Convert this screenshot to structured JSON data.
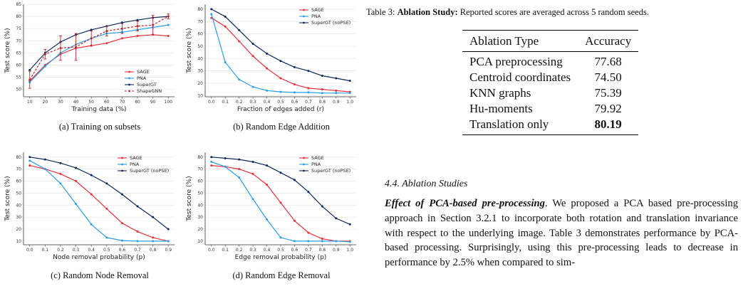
{
  "chart_data": [
    {
      "type": "line",
      "x": [
        10,
        20,
        30,
        40,
        50,
        60,
        70,
        80,
        90,
        100
      ],
      "xticks": [
        "10",
        "20",
        "30",
        "40",
        "50",
        "60",
        "70",
        "80",
        "90",
        "100"
      ],
      "yticks": [
        "50",
        "55",
        "60",
        "65",
        "70",
        "75",
        "80",
        "85"
      ],
      "ylim": [
        47,
        85
      ],
      "xlabel": "Training data (%)",
      "ylabel": "Test score (%)",
      "legend": "bottom-right",
      "grid": true,
      "series": [
        {
          "name": "SAGE",
          "color": "#e8303a",
          "values": [
            53.5,
            60,
            64.5,
            67,
            68,
            69,
            71,
            72,
            72.5,
            72
          ]
        },
        {
          "name": "PNA",
          "color": "#2a9ee8",
          "values": [
            53,
            59.5,
            65,
            68.5,
            71,
            73,
            73.5,
            74.5,
            75.5,
            76.5
          ]
        },
        {
          "name": "SuperGT",
          "color": "#0b2a5a",
          "values": [
            58,
            65,
            69.5,
            72.5,
            74.5,
            76,
            77.5,
            78.5,
            79.5,
            80
          ]
        },
        {
          "name": "ShapeGNN",
          "color": "#c0262d",
          "dashed": true,
          "errorbars": true,
          "values": [
            54,
            64.5,
            67,
            67.5,
            71,
            74,
            75,
            76,
            76.5,
            80
          ],
          "err": [
            3.5,
            2,
            5,
            5.5,
            3,
            2,
            2,
            2,
            4,
            1
          ]
        }
      ]
    },
    {
      "type": "line",
      "x": [
        0.0,
        0.1,
        0.2,
        0.3,
        0.4,
        0.5,
        0.6,
        0.7,
        0.8,
        0.9,
        1.0
      ],
      "xticks": [
        "0.0",
        "0.1",
        "0.2",
        "0.3",
        "0.4",
        "0.5",
        "0.6",
        "0.7",
        "0.8",
        "0.9",
        "1.0"
      ],
      "yticks": [
        "10",
        "20",
        "30",
        "40",
        "50",
        "60",
        "70",
        "80"
      ],
      "ylim": [
        9,
        84
      ],
      "xlabel": "Fraction of edges added (r)",
      "ylabel": "Test score (%)",
      "legend": "top-right",
      "grid": true,
      "series": [
        {
          "name": "SAGE",
          "color": "#e8303a",
          "values": [
            73,
            66,
            54,
            42,
            32,
            24,
            19,
            16,
            15,
            14,
            13
          ]
        },
        {
          "name": "PNA",
          "color": "#2a9ee8",
          "values": [
            76,
            37,
            23,
            17,
            14,
            13,
            12.5,
            12.5,
            12,
            12,
            12
          ]
        },
        {
          "name": "SuperGT (noPSE)",
          "color": "#0b2a5a",
          "values": [
            80,
            74,
            63,
            52,
            44,
            38,
            33,
            30,
            26,
            24,
            22
          ]
        }
      ]
    },
    {
      "type": "line",
      "x": [
        0.0,
        0.1,
        0.2,
        0.3,
        0.4,
        0.5,
        0.6,
        0.7,
        0.8,
        0.9
      ],
      "xticks": [
        "0.0",
        "0.1",
        "0.2",
        "0.3",
        "0.4",
        "0.5",
        "0.6",
        "0.7",
        "0.8",
        "0.9"
      ],
      "yticks": [
        "10",
        "20",
        "30",
        "40",
        "50",
        "60",
        "70",
        "80"
      ],
      "ylim": [
        7,
        84
      ],
      "xlabel": "Node removal probability (p)",
      "ylabel": "Test score (%)",
      "legend": "top-right",
      "grid": true,
      "series": [
        {
          "name": "SAGE",
          "color": "#e8303a",
          "values": [
            73,
            70,
            66,
            60,
            49,
            37,
            25,
            18,
            13,
            10
          ]
        },
        {
          "name": "PNA",
          "color": "#2a9ee8",
          "values": [
            77,
            70,
            58,
            41,
            24,
            13,
            10.5,
            10,
            10,
            10
          ]
        },
        {
          "name": "SuperGT (noPSE)",
          "color": "#0b2a5a",
          "values": [
            80,
            78,
            75,
            71,
            65,
            58,
            49,
            39,
            30,
            20
          ]
        }
      ]
    },
    {
      "type": "line",
      "x": [
        0.0,
        0.1,
        0.2,
        0.3,
        0.4,
        0.5,
        0.6,
        0.7,
        0.8,
        0.9,
        1.0
      ],
      "xticks": [
        "0.0",
        "0.1",
        "0.2",
        "0.3",
        "0.4",
        "0.5",
        "0.6",
        "0.7",
        "0.8",
        "0.9",
        "1.0"
      ],
      "yticks": [
        "10",
        "20",
        "30",
        "40",
        "50",
        "60",
        "70",
        "80"
      ],
      "ylim": [
        7,
        84
      ],
      "xlabel": "Edge removal probability (p)",
      "ylabel": "Test score (%)",
      "legend": "top-right",
      "grid": true,
      "series": [
        {
          "name": "SAGE",
          "color": "#e8303a",
          "values": [
            73,
            72,
            70,
            66,
            57,
            42,
            27,
            17,
            12,
            10,
            10
          ]
        },
        {
          "name": "PNA",
          "color": "#2a9ee8",
          "values": [
            76,
            72,
            63,
            45,
            28,
            13,
            10,
            10,
            10,
            10,
            9.5
          ]
        },
        {
          "name": "SuperGT (noPSE)",
          "color": "#0b2a5a",
          "values": [
            80,
            79,
            78,
            76,
            73,
            67,
            61,
            51,
            39,
            29,
            24
          ]
        }
      ]
    }
  ],
  "figure": {
    "captions": [
      "(a) Training on subsets",
      "(b) Random Edge Addition",
      "(c) Random Node Removal",
      "(d) Random Edge Removal"
    ]
  },
  "table": {
    "caption_label": "Table 3:",
    "caption_bold": "Ablation Study:",
    "caption_rest": " Reported scores are averaged across 5 random seeds.",
    "headers": [
      "Ablation Type",
      "Accuracy"
    ],
    "rows": [
      {
        "type": "PCA preprocessing",
        "acc": "77.68"
      },
      {
        "type": "Centroid coordinates",
        "acc": "74.50"
      },
      {
        "type": "KNN graphs",
        "acc": "75.39"
      },
      {
        "type": "Hu-moments",
        "acc": "79.92"
      },
      {
        "type": "Translation only",
        "acc": "80.19"
      }
    ]
  },
  "section": {
    "heading": "4.4. Ablation Studies",
    "para_lead": "Effect of PCA-based pre-processing",
    "para_body": ". We proposed a PCA based pre-processing approach in Section 3.2.1 to incorporate both rotation and translation invariance with respect to the underlying image. Table 3 demonstrates performance by PCA-based processing. Surprisingly, using this pre-processing leads to decrease in performance by 2.5% when compared to sim-"
  }
}
